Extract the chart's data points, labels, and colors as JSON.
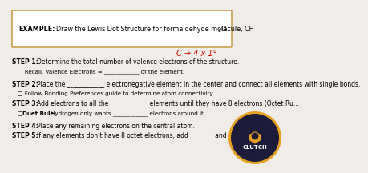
{
  "bg_color": "#f0ede8",
  "example_border_color": "#c8a050",
  "red_annotation": "C → 4 x 1°",
  "font_size_main": 5.5,
  "font_size_example": 5.8,
  "font_size_sub": 5.1,
  "steps": [
    {
      "bold": "STEP 1:",
      "text": " Determine the total number of valence electrons of the structure.",
      "sub": "   □ Recall, Valence Electrons = ____________ of the element."
    },
    {
      "bold": "STEP 2:",
      "text": " Place the ____________ electronegative element in the center and connect all elements with single bonds.",
      "sub": "   □ Follow Bonding Preferences guide to determine atom connectivity."
    },
    {
      "bold": "STEP 3:",
      "text": " Add electrons to all the ____________ elements until they have 8 electrons (Octet Ru...",
      "sub": null,
      "sub_bold": "   □ Duet Rule:",
      "sub_text": " Hydrogen only wants ____________ electrons around it."
    },
    {
      "bold": "STEP 4:",
      "text": " Place any remaining electrons on the central atom.",
      "sub": null
    },
    {
      "bold": "STEP 5:",
      "text": " If any elements don’t have 8 octet electrons, add              and",
      "sub": null
    }
  ]
}
